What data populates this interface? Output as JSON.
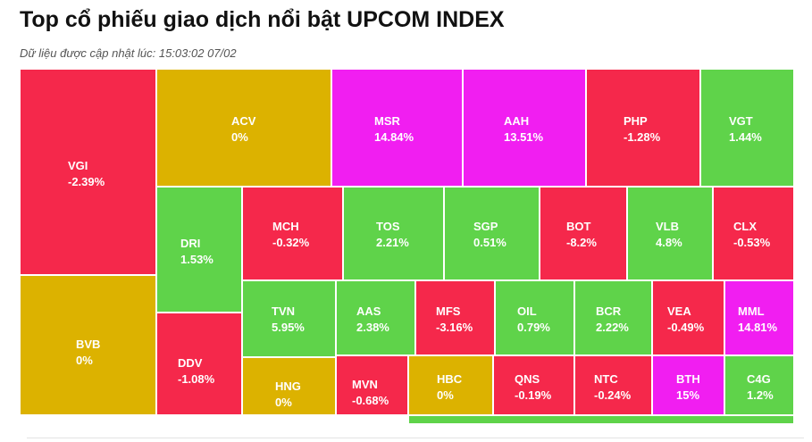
{
  "header": {
    "title": "Top cổ phiếu giao dịch nổi bật UPCOM INDEX",
    "subtitle": "Dữ liệu được cập nhật lúc: 15:03:02 07/02"
  },
  "colors": {
    "up": "#5fd34a",
    "down": "#f5284b",
    "ceiling": "#f11ef1",
    "flat": "#dcb200"
  },
  "chart_data": {
    "type": "treemap",
    "title": "Top cổ phiếu giao dịch nổi bật UPCOM INDEX",
    "items": [
      {
        "ticker": "VGI",
        "change": "-2.39%",
        "value": -2.39,
        "status": "down"
      },
      {
        "ticker": "BVB",
        "change": "0%",
        "value": 0,
        "status": "flat"
      },
      {
        "ticker": "ACV",
        "change": "0%",
        "value": 0,
        "status": "flat"
      },
      {
        "ticker": "MSR",
        "change": "14.84%",
        "value": 14.84,
        "status": "ceiling"
      },
      {
        "ticker": "AAH",
        "change": "13.51%",
        "value": 13.51,
        "status": "ceiling"
      },
      {
        "ticker": "PHP",
        "change": "-1.28%",
        "value": -1.28,
        "status": "down"
      },
      {
        "ticker": "VGT",
        "change": "1.44%",
        "value": 1.44,
        "status": "up"
      },
      {
        "ticker": "DRI",
        "change": "1.53%",
        "value": 1.53,
        "status": "up"
      },
      {
        "ticker": "DDV",
        "change": "-1.08%",
        "value": -1.08,
        "status": "down"
      },
      {
        "ticker": "MCH",
        "change": "-0.32%",
        "value": -0.32,
        "status": "down"
      },
      {
        "ticker": "TOS",
        "change": "2.21%",
        "value": 2.21,
        "status": "up"
      },
      {
        "ticker": "SGP",
        "change": "0.51%",
        "value": 0.51,
        "status": "up"
      },
      {
        "ticker": "BOT",
        "change": "-8.2%",
        "value": -8.2,
        "status": "down"
      },
      {
        "ticker": "VLB",
        "change": "4.8%",
        "value": 4.8,
        "status": "up"
      },
      {
        "ticker": "CLX",
        "change": "-0.53%",
        "value": -0.53,
        "status": "down"
      },
      {
        "ticker": "TVN",
        "change": "5.95%",
        "value": 5.95,
        "status": "up"
      },
      {
        "ticker": "HNG",
        "change": "0%",
        "value": 0,
        "status": "flat"
      },
      {
        "ticker": "AAS",
        "change": "2.38%",
        "value": 2.38,
        "status": "up"
      },
      {
        "ticker": "MVN",
        "change": "-0.68%",
        "value": -0.68,
        "status": "down"
      },
      {
        "ticker": "MFS",
        "change": "-3.16%",
        "value": -3.16,
        "status": "down"
      },
      {
        "ticker": "HBC",
        "change": "0%",
        "value": 0,
        "status": "flat"
      },
      {
        "ticker": "OIL",
        "change": "0.79%",
        "value": 0.79,
        "status": "up"
      },
      {
        "ticker": "QNS",
        "change": "-0.19%",
        "value": -0.19,
        "status": "down"
      },
      {
        "ticker": "BCR",
        "change": "2.22%",
        "value": 2.22,
        "status": "up"
      },
      {
        "ticker": "NTC",
        "change": "-0.24%",
        "value": -0.24,
        "status": "down"
      },
      {
        "ticker": "VEA",
        "change": "-0.49%",
        "value": -0.49,
        "status": "down"
      },
      {
        "ticker": "BTH",
        "change": "15%",
        "value": 15,
        "status": "ceiling"
      },
      {
        "ticker": "MML",
        "change": "14.81%",
        "value": 14.81,
        "status": "ceiling"
      },
      {
        "ticker": "C4G",
        "change": "1.2%",
        "value": 1.2,
        "status": "up"
      },
      {
        "ticker": "",
        "change": "",
        "value": null,
        "status": "up"
      }
    ]
  }
}
